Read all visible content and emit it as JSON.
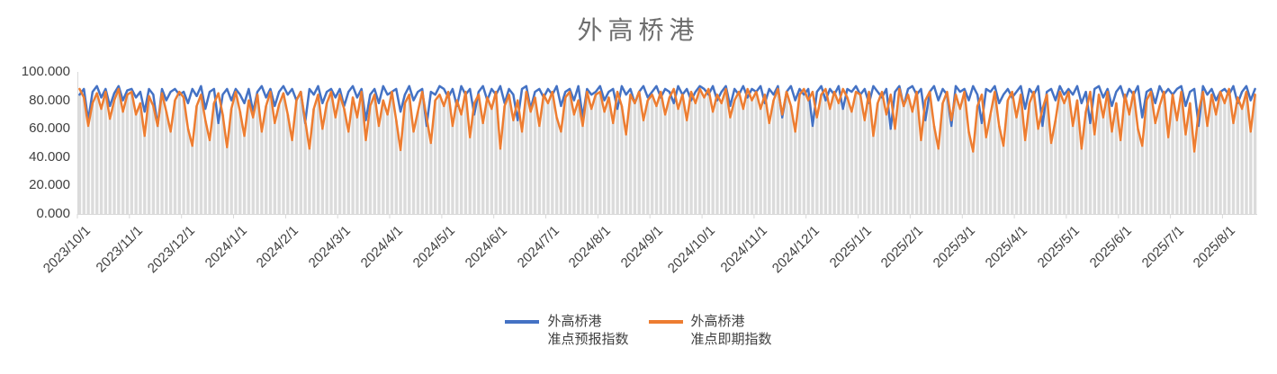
{
  "title": "外高桥港",
  "y_axis": {
    "tick_labels": [
      "100.000",
      "80.000",
      "60.000",
      "40.000",
      "20.000",
      "0.000"
    ],
    "min": 0,
    "max": 100
  },
  "x_axis": {
    "labels": [
      "2023/10/1",
      "2023/11/1",
      "2023/12/1",
      "2024/1/1",
      "2024/2/1",
      "2024/3/1",
      "2024/4/1",
      "2024/5/1",
      "2024/6/1",
      "2024/7/1",
      "2024/8/1",
      "2024/9/1",
      "2024/10/1",
      "2024/11/1",
      "2024/12/1",
      "2025/1/1",
      "2025/2/1",
      "2025/3/1",
      "2025/4/1",
      "2025/5/1",
      "2025/6/1",
      "2025/7/1",
      "2025/8/1"
    ]
  },
  "legend": {
    "items": [
      {
        "line1": "外高桥港",
        "line2": "准点预报指数",
        "color": "#4472C4"
      },
      {
        "line1": "外高桥港",
        "line2": "准点即期指数",
        "color": "#ED7D31"
      }
    ]
  },
  "colors": {
    "forecast_line": "#4472C4",
    "spot_line": "#ED7D31",
    "underlay_bar": "#DBDBDB",
    "axis": "#D9D9D9",
    "title_text": "#6e6e6e",
    "axis_text": "#404040"
  },
  "chart_data": {
    "type": "line",
    "title": "外高桥港",
    "ylim": [
      0,
      100
    ],
    "ytick_step": 20,
    "grid": false,
    "legend_position": "bottom",
    "x_tick_labels": [
      "2023/10/1",
      "2023/11/1",
      "2023/12/1",
      "2024/1/1",
      "2024/2/1",
      "2024/3/1",
      "2024/4/1",
      "2024/5/1",
      "2024/6/1",
      "2024/7/1",
      "2024/8/1",
      "2024/9/1",
      "2024/10/1",
      "2024/11/1",
      "2024/12/1",
      "2025/1/1",
      "2025/2/1",
      "2025/3/1",
      "2025/4/1",
      "2025/5/1",
      "2025/6/1",
      "2025/7/1",
      "2025/8/1"
    ],
    "points_per_month": 12,
    "underlay_bars": {
      "color": "#DBDBDB",
      "rule": "min-of-series",
      "note": "gray drop bars from axis up to the lower of the two series"
    },
    "series": [
      {
        "name": "外高桥港准点预报指数",
        "color": "#4472C4",
        "values": [
          84,
          88,
          66,
          86,
          90,
          82,
          88,
          76,
          85,
          90,
          80,
          87,
          88,
          82,
          86,
          72,
          88,
          84,
          62,
          88,
          80,
          86,
          88,
          84,
          86,
          78,
          88,
          83,
          90,
          74,
          86,
          88,
          64,
          84,
          88,
          80,
          88,
          84,
          78,
          88,
          72,
          86,
          90,
          82,
          88,
          76,
          86,
          90,
          84,
          88,
          80,
          86,
          64,
          88,
          84,
          90,
          78,
          86,
          88,
          82,
          88,
          76,
          86,
          90,
          82,
          88,
          66,
          84,
          88,
          78,
          90,
          84,
          86,
          88,
          72,
          84,
          90,
          80,
          86,
          88,
          62,
          86,
          84,
          90,
          88,
          82,
          88,
          76,
          90,
          84,
          88,
          70,
          86,
          90,
          80,
          88,
          84,
          90,
          78,
          88,
          84,
          66,
          88,
          90,
          74,
          86,
          88,
          82,
          88,
          84,
          90,
          76,
          86,
          88,
          80,
          90,
          68,
          88,
          84,
          86,
          90,
          80,
          86,
          88,
          74,
          90,
          84,
          88,
          78,
          86,
          90,
          82,
          86,
          90,
          82,
          88,
          86,
          78,
          90,
          84,
          88,
          80,
          86,
          90,
          88,
          84,
          90,
          80,
          86,
          90,
          76,
          88,
          84,
          90,
          82,
          88,
          86,
          90,
          78,
          88,
          84,
          90,
          68,
          86,
          90,
          80,
          88,
          84,
          88,
          62,
          86,
          90,
          80,
          88,
          84,
          90,
          74,
          88,
          86,
          90,
          84,
          88,
          78,
          90,
          86,
          82,
          88,
          60,
          86,
          90,
          76,
          88,
          90,
          84,
          88,
          66,
          86,
          90,
          80,
          88,
          84,
          62,
          90,
          86,
          88,
          80,
          90,
          84,
          64,
          88,
          86,
          90,
          78,
          84,
          88,
          82,
          86,
          90,
          74,
          88,
          84,
          90,
          62,
          86,
          88,
          80,
          90,
          84,
          88,
          84,
          90,
          78,
          86,
          64,
          88,
          90,
          82,
          88,
          76,
          86,
          90,
          80,
          88,
          84,
          90,
          68,
          86,
          88,
          78,
          90,
          84,
          88,
          84,
          88,
          90,
          76,
          86,
          88,
          62,
          90,
          84,
          88,
          80,
          86,
          88,
          84,
          90,
          78,
          86,
          90,
          80,
          88
        ]
      },
      {
        "name": "外高桥港准点即期指数",
        "color": "#ED7D31",
        "values": [
          88,
          82,
          62,
          78,
          85,
          74,
          86,
          67,
          80,
          88,
          72,
          84,
          86,
          70,
          78,
          55,
          83,
          76,
          62,
          85,
          72,
          58,
          80,
          86,
          82,
          60,
          48,
          76,
          84,
          66,
          52,
          78,
          85,
          70,
          47,
          74,
          86,
          72,
          55,
          80,
          68,
          84,
          58,
          76,
          86,
          64,
          77,
          85,
          70,
          52,
          80,
          86,
          66,
          46,
          74,
          84,
          60,
          78,
          86,
          68,
          84,
          74,
          58,
          82,
          68,
          86,
          52,
          76,
          84,
          62,
          80,
          70,
          86,
          66,
          45,
          78,
          84,
          58,
          72,
          86,
          68,
          50,
          80,
          84,
          76,
          86,
          62,
          80,
          70,
          86,
          54,
          78,
          84,
          64,
          82,
          74,
          86,
          46,
          76,
          84,
          66,
          80,
          58,
          86,
          72,
          82,
          62,
          84,
          78,
          86,
          68,
          58,
          82,
          86,
          70,
          80,
          62,
          86,
          74,
          84,
          86,
          72,
          82,
          64,
          86,
          76,
          56,
          84,
          78,
          86,
          66,
          80,
          84,
          76,
          86,
          70,
          82,
          88,
          74,
          84,
          66,
          86,
          78,
          88,
          82,
          88,
          72,
          84,
          78,
          88,
          68,
          80,
          86,
          74,
          88,
          80,
          86,
          74,
          84,
          64,
          80,
          88,
          70,
          86,
          76,
          58,
          84,
          88,
          80,
          86,
          68,
          84,
          88,
          74,
          86,
          78,
          88,
          82,
          72,
          86,
          84,
          66,
          86,
          55,
          78,
          86,
          70,
          84,
          60,
          88,
          76,
          84,
          72,
          86,
          52,
          80,
          86,
          62,
          46,
          78,
          86,
          66,
          84,
          74,
          86,
          58,
          44,
          76,
          84,
          54,
          70,
          86,
          62,
          48,
          80,
          86,
          68,
          84,
          52,
          78,
          86,
          60,
          74,
          84,
          50,
          66,
          86,
          78,
          86,
          62,
          80,
          46,
          72,
          86,
          56,
          84,
          68,
          86,
          58,
          78,
          52,
          84,
          70,
          86,
          60,
          48,
          80,
          86,
          64,
          76,
          86,
          54,
          84,
          66,
          86,
          56,
          78,
          44,
          72,
          86,
          62,
          84,
          70,
          86,
          78,
          88,
          64,
          82,
          74,
          86,
          58,
          84
        ]
      }
    ]
  }
}
